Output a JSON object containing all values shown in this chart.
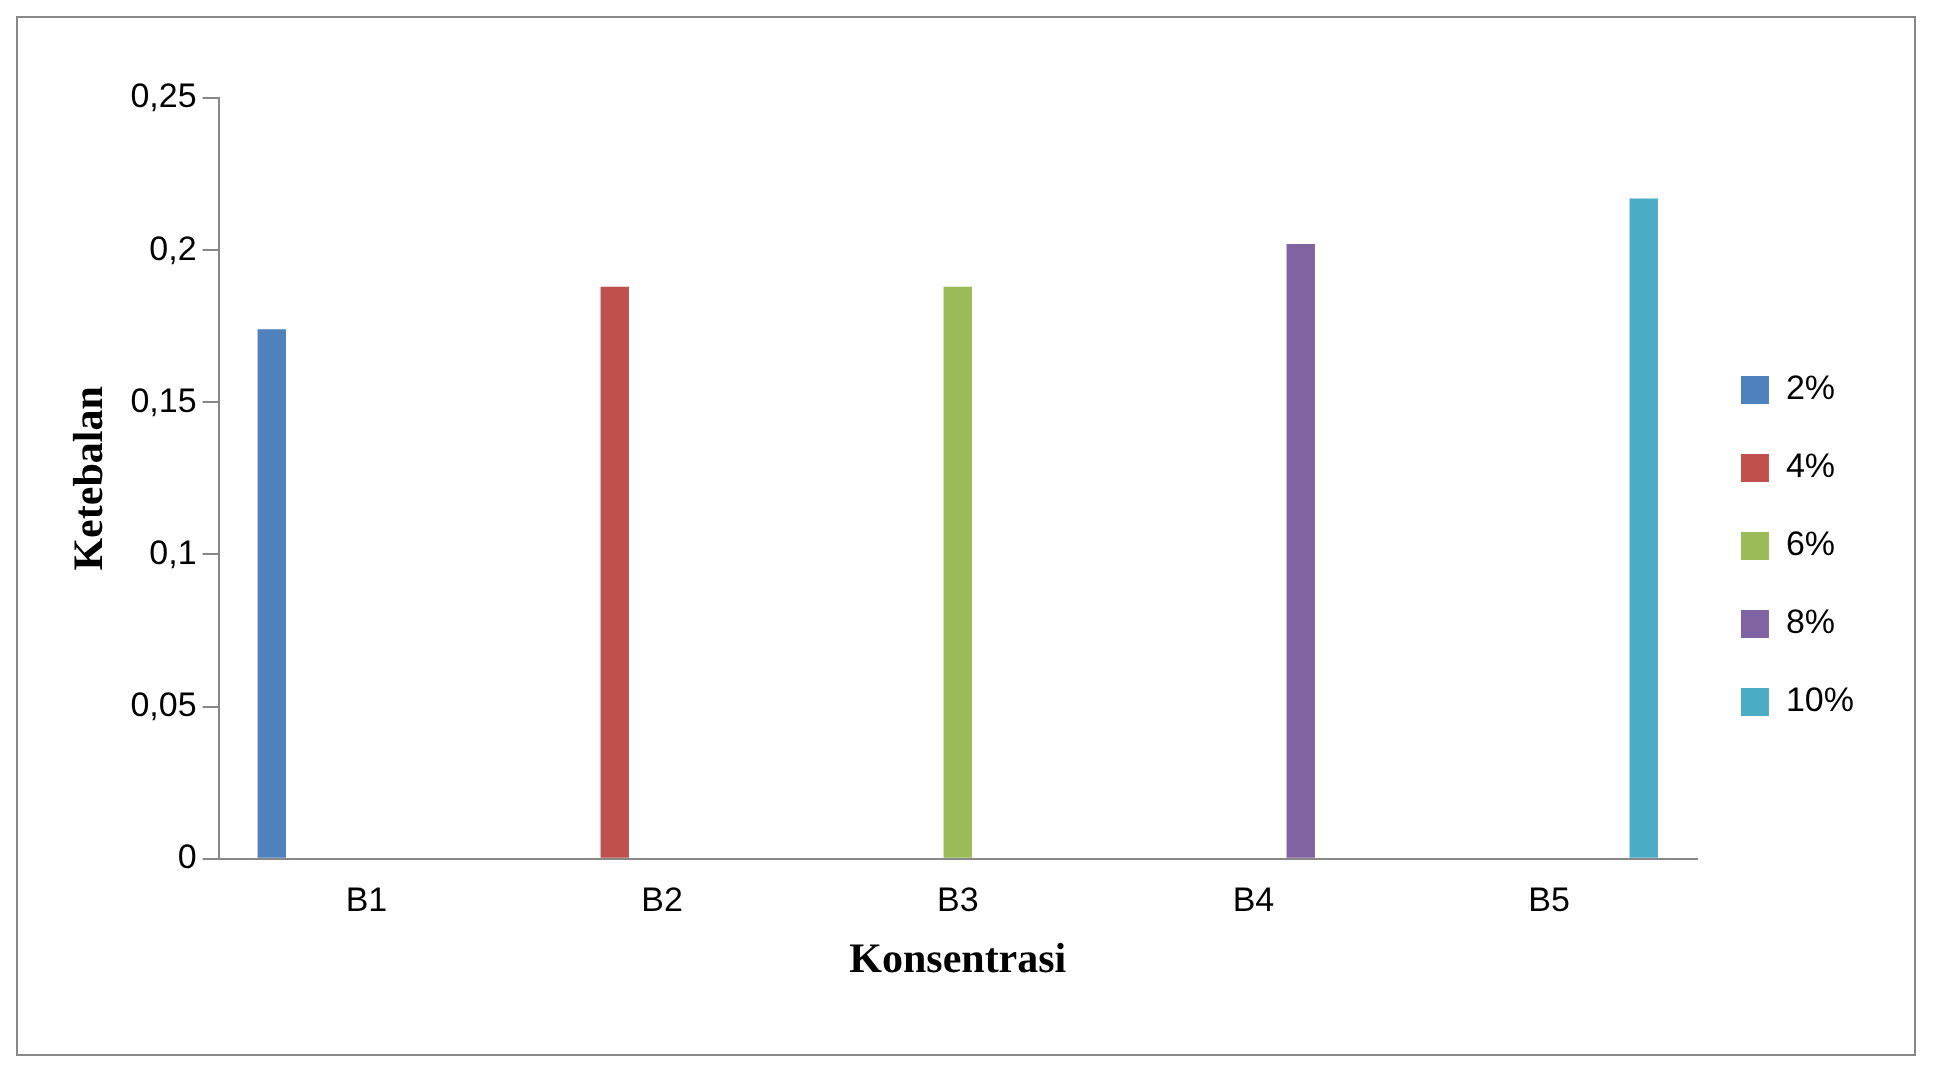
{
  "chart_data": {
    "type": "bar",
    "xlabel": "Konsentrasi",
    "ylabel": "Ketebalan",
    "categories": [
      "B1",
      "B2",
      "B3",
      "B4",
      "B5"
    ],
    "series": [
      {
        "name": "2%",
        "color": "#4f81bd",
        "values": [
          0.174,
          null,
          null,
          null,
          null
        ]
      },
      {
        "name": "4%",
        "color": "#c0504d",
        "values": [
          null,
          0.188,
          null,
          null,
          null
        ]
      },
      {
        "name": "6%",
        "color": "#9bbb59",
        "values": [
          null,
          null,
          0.188,
          null,
          null
        ]
      },
      {
        "name": "8%",
        "color": "#8064a2",
        "values": [
          null,
          null,
          null,
          0.202,
          null
        ]
      },
      {
        "name": "10%",
        "color": "#4bacc6",
        "values": [
          null,
          null,
          null,
          null,
          0.217
        ]
      }
    ],
    "ylim": [
      0,
      0.25
    ],
    "yticks": [
      {
        "value": 0,
        "label": "0"
      },
      {
        "value": 0.05,
        "label": "0,05"
      },
      {
        "value": 0.1,
        "label": "0,1"
      },
      {
        "value": 0.15,
        "label": "0,15"
      },
      {
        "value": 0.2,
        "label": "0,2"
      },
      {
        "value": 0.25,
        "label": "0,25"
      }
    ],
    "grid": false,
    "legend": "right"
  }
}
